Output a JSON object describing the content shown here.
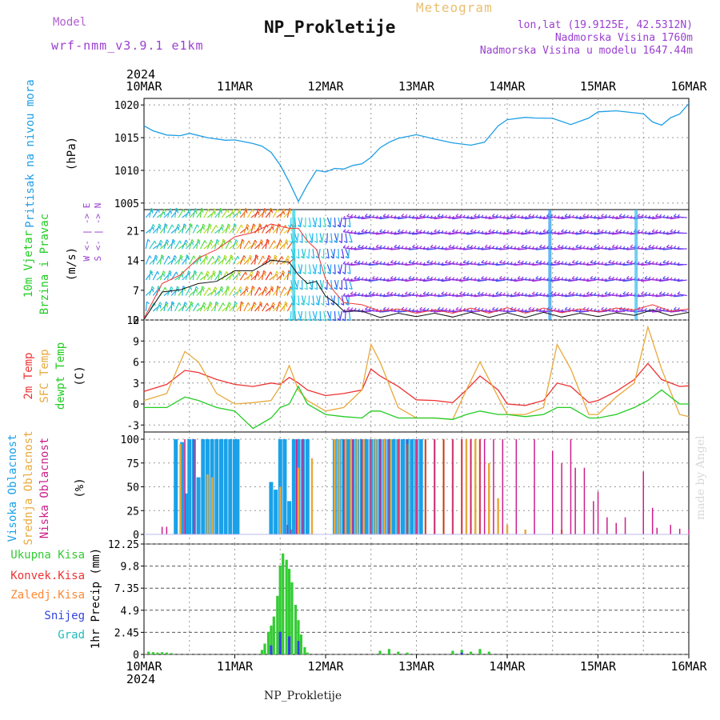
{
  "header": {
    "model_label": "Model",
    "model_name": "wrf-nmm_v3.9.1 e1km",
    "title": "NP_Prokletije",
    "product": "Meteogram",
    "lonlat": "lon,lat (19.9125E, 42.5312N)",
    "elevation": "Nadmorska Visina 1760m",
    "model_elevation": "Nadmorska Visina u modelu 1647.44m",
    "footer_title": "NP_Prokletije",
    "credit": "made by Angel"
  },
  "time_axis": {
    "year": "2024",
    "labels": [
      "10MAR",
      "11MAR",
      "12MAR",
      "13MAR",
      "14MAR",
      "15MAR",
      "16MAR"
    ]
  },
  "colors": {
    "pressure": "#1e9ee6",
    "temp2m": "#ee3333",
    "sfc_temp": "#e8a93c",
    "dewpt": "#22cc22",
    "cloud_high": "#1aa1e8",
    "cloud_mid": "#e8a93c",
    "cloud_low": "#cc1f8a",
    "precip_total": "#33cc33",
    "precip_conv": "#ee3333",
    "precip_frz": "#ff8833",
    "snow": "#3344dd",
    "hail": "#22bbbb"
  },
  "chart_data": [
    {
      "type": "line",
      "ylabel_name": "Pritisak na nivou mora",
      "ylabel_unit": "(hPa)",
      "yticks": [
        "1005",
        "1010",
        "1015",
        "1020"
      ],
      "ylim": [
        1004,
        1021
      ],
      "x_days": [
        0,
        0.1,
        0.25,
        0.4,
        0.5,
        0.7,
        0.9,
        1.0,
        1.2,
        1.3,
        1.4,
        1.5,
        1.6,
        1.7,
        1.8,
        1.9,
        2.0,
        2.1,
        2.2,
        2.3,
        2.4,
        2.5,
        2.6,
        2.7,
        2.8,
        3.0,
        3.2,
        3.4,
        3.6,
        3.75,
        3.9,
        4.0,
        4.2,
        4.3,
        4.5,
        4.7,
        4.9,
        5.0,
        5.2,
        5.4,
        5.5,
        5.6,
        5.7,
        5.8,
        5.9,
        6.0
      ],
      "values": [
        1016.8,
        1015.8,
        1015.6,
        1015.3,
        1015.4,
        1015.2,
        1014.6,
        1014.4,
        1014.3,
        1013.7,
        1012.5,
        1011.0,
        1008.2,
        1005.0,
        1008.0,
        1010.0,
        1009.5,
        1010.5,
        1010.2,
        1010.5,
        1011.2,
        1012.0,
        1013.2,
        1014.5,
        1014.9,
        1015.2,
        1015.0,
        1014.2,
        1013.6,
        1014.5,
        1016.8,
        1017.5,
        1018.3,
        1018.0,
        1017.7,
        1017.2,
        1018.0,
        1018.7,
        1019.3,
        1018.8,
        1018.4,
        1017.6,
        1016.9,
        1017.8,
        1018.8,
        1020.2
      ]
    },
    {
      "type": "barbs",
      "ylabel_name": "10m Vjetar",
      "ylabel_name2": "Brzina i Pravac",
      "ylabel_unit": "(m/s)",
      "legend_glyph": "W <- | -> E",
      "legend_glyph2": "S <- | -> N",
      "yticks": [
        "0",
        "7",
        "14",
        "21"
      ],
      "ylim": [
        0,
        26
      ],
      "x_days": [
        0,
        0.2,
        0.4,
        0.6,
        0.8,
        1.0,
        1.2,
        1.4,
        1.6,
        1.7,
        1.8,
        1.9,
        2.0,
        2.1,
        2.2,
        2.4,
        2.6,
        2.8,
        3.0,
        3.2,
        3.4,
        3.6,
        3.8,
        4.0,
        4.2,
        4.4,
        4.6,
        4.8,
        5.0,
        5.2,
        5.4,
        5.6,
        5.8,
        6.0
      ],
      "speed_black": [
        0.5,
        6.0,
        7.5,
        8.0,
        9.5,
        11.0,
        12.0,
        13.5,
        14.0,
        10.0,
        9.0,
        8.5,
        6.0,
        3.5,
        2.5,
        1.5,
        1.0,
        1.0,
        1.2,
        1.0,
        1.1,
        1.2,
        1.0,
        1.1,
        1.0,
        1.2,
        1.1,
        1.0,
        1.2,
        1.1,
        1.5,
        1.8,
        1.4,
        1.2
      ],
      "speed_red": [
        0.8,
        8.0,
        11.0,
        14.0,
        17.0,
        19.0,
        21.0,
        22.0,
        22.0,
        21.0,
        19.0,
        16.0,
        10.0,
        6.0,
        4.5,
        3.0,
        2.5,
        2.0,
        2.0,
        1.8,
        2.0,
        2.2,
        2.0,
        2.3,
        2.0,
        2.2,
        2.1,
        2.0,
        2.3,
        2.2,
        2.8,
        3.0,
        2.5,
        2.0
      ],
      "gust_line_color": "#ee3333",
      "speed_line_color": "#111111"
    },
    {
      "type": "line",
      "ylabel_names": [
        "2m Temp",
        "SFC Temp",
        "dewpt Temp"
      ],
      "ylabel_unit": "(C)",
      "yticks": [
        "-3",
        "0",
        "3",
        "6",
        "9",
        "12"
      ],
      "ylim": [
        -4,
        12
      ],
      "x_days": [
        0,
        0.25,
        0.45,
        0.6,
        0.8,
        1.0,
        1.2,
        1.4,
        1.5,
        1.6,
        1.7,
        1.8,
        2.0,
        2.2,
        2.4,
        2.5,
        2.6,
        2.8,
        3.0,
        3.2,
        3.4,
        3.55,
        3.7,
        3.9,
        4.0,
        4.2,
        4.4,
        4.55,
        4.7,
        4.9,
        5.0,
        5.2,
        5.4,
        5.55,
        5.7,
        5.9,
        6.0
      ],
      "series": [
        {
          "name": "2m Temp",
          "values": [
            1.8,
            2.8,
            4.8,
            4.5,
            3.5,
            2.8,
            2.5,
            3.0,
            2.8,
            3.8,
            3.0,
            2.0,
            1.2,
            1.5,
            2.0,
            5.0,
            4.0,
            2.5,
            0.6,
            0.5,
            0.2,
            2.0,
            4.0,
            2.0,
            0.0,
            -0.2,
            0.5,
            3.0,
            2.5,
            0.2,
            0.5,
            1.8,
            3.5,
            5.8,
            3.5,
            2.5,
            2.6
          ]
        },
        {
          "name": "SFC Temp",
          "values": [
            0.5,
            1.5,
            7.5,
            6.0,
            1.5,
            0.0,
            0.2,
            0.5,
            2.5,
            5.5,
            2.0,
            0.5,
            -1.0,
            -0.5,
            2.0,
            8.5,
            6.0,
            -0.5,
            -2.0,
            -2.0,
            -2.2,
            2.0,
            6.0,
            1.0,
            -1.5,
            -1.5,
            -0.5,
            8.5,
            5.0,
            -1.5,
            -1.5,
            1.0,
            3.0,
            11.0,
            5.0,
            -1.5,
            -1.8
          ]
        },
        {
          "name": "dewpt Temp",
          "values": [
            -0.5,
            -0.5,
            1.0,
            0.5,
            -0.5,
            -1.0,
            -3.5,
            -2.0,
            -0.5,
            0.0,
            2.5,
            0.0,
            -1.5,
            -1.8,
            -2.0,
            -1.0,
            -1.0,
            -2.0,
            -2.0,
            -2.0,
            -2.2,
            -1.5,
            -1.0,
            -1.5,
            -1.5,
            -1.8,
            -1.5,
            -0.5,
            -0.5,
            -2.0,
            -2.0,
            -1.5,
            -0.5,
            0.5,
            2.0,
            0.0,
            0.0
          ]
        }
      ]
    },
    {
      "type": "bar",
      "ylabel_names": [
        "Visoka Oblacnost",
        "Srednja Oblacnost",
        "Niska Oblacnost"
      ],
      "ylabel_unit": "(%)",
      "yticks": [
        "0",
        "25",
        "50",
        "75",
        "100"
      ],
      "ylim": [
        0,
        100
      ],
      "series": [
        {
          "name": "Visoka Oblacnost",
          "x_days": [
            0.35,
            0.42,
            0.47,
            0.5,
            0.55,
            0.6,
            0.65,
            0.7,
            0.75,
            0.8,
            0.85,
            0.9,
            0.95,
            1.0,
            1.03,
            1.4,
            1.45,
            1.5,
            1.55,
            1.6,
            1.65,
            1.7,
            1.75,
            1.8,
            2.1,
            2.15,
            2.2,
            2.25,
            2.3,
            2.35,
            2.4,
            2.45,
            2.5,
            2.55,
            2.6,
            2.65,
            2.7,
            2.75,
            2.8,
            2.85,
            2.9,
            2.95,
            3.0,
            3.05
          ],
          "values": [
            100,
            97,
            43,
            100,
            100,
            60,
            100,
            100,
            100,
            100,
            100,
            100,
            100,
            100,
            100,
            55,
            47,
            100,
            100,
            35,
            100,
            100,
            100,
            100,
            100,
            100,
            100,
            100,
            100,
            100,
            100,
            100,
            100,
            100,
            100,
            100,
            100,
            100,
            100,
            100,
            100,
            100,
            100,
            100
          ]
        },
        {
          "name": "Srednja Oblacnost",
          "x_days": [
            0.4,
            0.7,
            0.75,
            1.5,
            1.7,
            1.85,
            2.1,
            2.15,
            2.22,
            2.28,
            2.35,
            2.42,
            2.5,
            2.55,
            2.65,
            2.72,
            2.8,
            2.9,
            3.0,
            3.1,
            3.2,
            3.3,
            3.4,
            3.5,
            3.55,
            3.6,
            3.65,
            3.7,
            3.8,
            3.9,
            4.0,
            4.2,
            4.6
          ],
          "values": [
            95,
            63,
            60,
            50,
            70,
            80,
            100,
            100,
            100,
            100,
            100,
            100,
            100,
            100,
            100,
            100,
            100,
            95,
            100,
            100,
            100,
            100,
            100,
            100,
            100,
            100,
            100,
            100,
            75,
            38,
            10,
            5,
            5
          ]
        },
        {
          "name": "Niska Oblacnost",
          "x_days": [
            0.2,
            0.25,
            0.45,
            0.55,
            1.58,
            1.62,
            1.68,
            1.75,
            2.2,
            2.3,
            2.4,
            2.5,
            2.6,
            2.7,
            2.8,
            2.9,
            3.0,
            3.1,
            3.2,
            3.3,
            3.4,
            3.5,
            3.6,
            3.7,
            3.75,
            3.85,
            3.95,
            4.1,
            4.3,
            4.5,
            4.6,
            4.7,
            4.75,
            4.85,
            4.95,
            5.0,
            5.1,
            5.2,
            5.3,
            5.5,
            5.6,
            5.65,
            5.8,
            5.9,
            6.0
          ],
          "values": [
            8,
            8,
            100,
            100,
            10,
            5,
            100,
            100,
            100,
            100,
            100,
            100,
            100,
            100,
            100,
            100,
            100,
            100,
            100,
            100,
            100,
            100,
            100,
            100,
            100,
            100,
            100,
            100,
            100,
            88,
            75,
            100,
            70,
            70,
            35,
            45,
            18,
            12,
            18,
            66,
            28,
            7,
            10,
            6,
            5
          ]
        }
      ]
    },
    {
      "type": "bar",
      "ylabel_names": [
        "Ukupna Kisa",
        "Konvek.Kisa",
        "Zaledj.Kisa",
        "Snijeg",
        "Grad"
      ],
      "ylabel_unit": "1hr Precip (mm)",
      "yticks": [
        "0",
        "2.45",
        "4.9",
        "7.35",
        "9.8",
        "12.25"
      ],
      "ylim": [
        0,
        12.25
      ],
      "series": [
        {
          "name": "Ukupna Kisa",
          "x_days": [
            0.05,
            0.1,
            0.15,
            0.2,
            0.25,
            0.3,
            1.3,
            1.33,
            1.37,
            1.4,
            1.43,
            1.47,
            1.5,
            1.53,
            1.57,
            1.6,
            1.63,
            1.67,
            1.7,
            1.73,
            1.77,
            1.8,
            2.6,
            2.7,
            2.8,
            2.9,
            3.4,
            3.5,
            3.6,
            3.7,
            3.8
          ],
          "values": [
            0.3,
            0.25,
            0.2,
            0.25,
            0.2,
            0.15,
            0.5,
            1.2,
            2.5,
            3.2,
            4.2,
            6.5,
            9.8,
            11.2,
            10.5,
            9.5,
            8.0,
            5.5,
            3.8,
            2.2,
            0.8,
            0.2,
            0.4,
            0.6,
            0.3,
            0.2,
            0.4,
            0.5,
            0.3,
            0.6,
            0.3
          ]
        },
        {
          "name": "Snijeg",
          "x_days": [
            1.4,
            1.5,
            1.6,
            1.7,
            3.5
          ],
          "values": [
            1.0,
            2.5,
            2.0,
            1.5,
            0.2
          ]
        }
      ]
    }
  ]
}
